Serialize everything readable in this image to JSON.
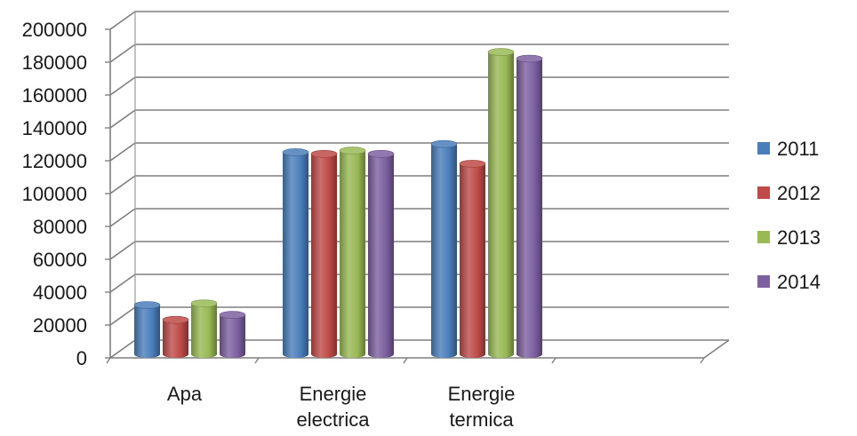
{
  "chart_data": {
    "type": "bar",
    "categories": [
      "Apa",
      "Energie electrica",
      "Energie termica",
      ""
    ],
    "category_lines": [
      [
        "Apa"
      ],
      [
        "Energie",
        "electrica"
      ],
      [
        "Energie",
        "termica"
      ],
      []
    ],
    "series": [
      {
        "name": "2011",
        "color": "#4A7EBB",
        "values": [
          30000,
          123000,
          128000,
          null
        ]
      },
      {
        "name": "2012",
        "color": "#BE4B48",
        "values": [
          21000,
          122000,
          116000,
          null
        ]
      },
      {
        "name": "2013",
        "color": "#98B954",
        "values": [
          31000,
          124000,
          184000,
          null
        ]
      },
      {
        "name": "2014",
        "color": "#7D60A0",
        "values": [
          24000,
          122000,
          180000,
          null
        ]
      }
    ],
    "ylim": [
      0,
      200000
    ],
    "yticks": [
      "0",
      "20000",
      "40000",
      "60000",
      "80000",
      "100000",
      "120000",
      "140000",
      "160000",
      "180000",
      "200000"
    ],
    "title": "",
    "xlabel": "",
    "ylabel": "",
    "grid": true,
    "legend_position": "right",
    "style": "3d-cylinder"
  }
}
